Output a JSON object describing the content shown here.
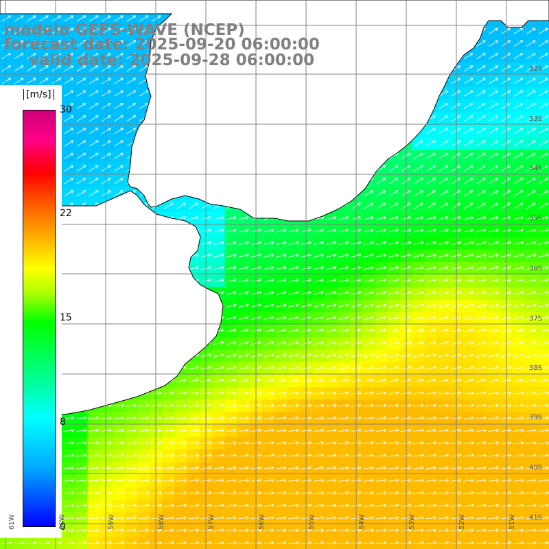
{
  "header": {
    "line1": "modelo GEFS-WAVE (NCEP)",
    "line2": "forecast date: 2025-09-20 06:00:00",
    "line3": "valid date: 2025-09-28 06:00:00"
  },
  "colorbar": {
    "unit": "[m/s]",
    "ticks": [
      "30",
      "22",
      "15",
      "8",
      "0"
    ]
  },
  "lat_labels": [
    "32S",
    "33S",
    "34S",
    "35S",
    "36S",
    "37S",
    "38S",
    "39S",
    "40S",
    "41S"
  ],
  "lon_labels": [
    "61W",
    "60W",
    "59W",
    "58W",
    "57W",
    "56W",
    "55W",
    "54W",
    "53W",
    "52W",
    "51W"
  ],
  "field": {
    "variable": "wind speed",
    "min_ms": 8,
    "max_ms": 22,
    "dominant_direction": "toward northeast / east"
  },
  "colors": {
    "land": "#ffffff",
    "grid": "#808080",
    "arrows": "#ffffff",
    "title": "#808080"
  }
}
